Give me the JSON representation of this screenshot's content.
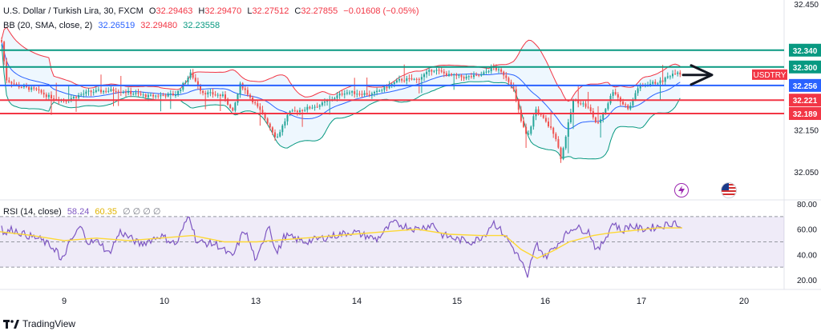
{
  "header": {
    "symbol": "U.S. Dollar / Turkish Lira, 30, FXCM",
    "o_label": "O",
    "o": "32.29463",
    "h_label": "H",
    "h": "32.29470",
    "l_label": "L",
    "l": "32.27512",
    "c_label": "C",
    "c": "32.27855",
    "change": "−0.01608 (−0.05%)"
  },
  "bb": {
    "label": "BB (20, SMA, close, 2)",
    "basis": "32.26519",
    "upper": "32.29480",
    "lower": "32.23558"
  },
  "rsi": {
    "label": "RSI (14, close)",
    "value": "58.24",
    "ma": "60.35",
    "extras": "∅ ∅ ∅ ∅"
  },
  "brand": "TradingView",
  "colors": {
    "candle_up": "#26a69a",
    "candle_down": "#ef5350",
    "bb_upper": "#f23645",
    "bb_lower": "#089981",
    "bb_basis": "#2962ff",
    "bb_fill": "#2196f3",
    "rsi_line": "#7e57c2",
    "rsi_ma": "#fdd835",
    "level_green": "#089981",
    "level_blue": "#2962ff",
    "level_red": "#f23645"
  },
  "chart_data": {
    "type": "candlestick",
    "price_axis": {
      "ticks": [
        "32.450",
        "32.150",
        "32.050"
      ]
    },
    "x_axis": {
      "ticks": [
        "9",
        "10",
        "13",
        "14",
        "15",
        "16",
        "17",
        "20"
      ]
    },
    "levels": [
      {
        "value": "32.340",
        "color": "green"
      },
      {
        "value": "32.300",
        "color": "green"
      },
      {
        "value": "32.256",
        "color": "blue",
        "tag": "USDTRY"
      },
      {
        "value": "32.221",
        "color": "red"
      },
      {
        "value": "32.189",
        "color": "red"
      }
    ],
    "annotation": "arrow pointing right",
    "price_path": [
      [
        0,
        32.27
      ],
      [
        2,
        32.36
      ],
      [
        8,
        32.27
      ],
      [
        22,
        32.255
      ],
      [
        45,
        32.245
      ],
      [
        60,
        32.23
      ],
      [
        80,
        32.22
      ],
      [
        110,
        32.24
      ],
      [
        145,
        32.245
      ],
      [
        185,
        32.23
      ],
      [
        220,
        32.235
      ],
      [
        238,
        32.285
      ],
      [
        252,
        32.24
      ],
      [
        280,
        32.23
      ],
      [
        290,
        32.19
      ],
      [
        300,
        32.26
      ],
      [
        315,
        32.22
      ],
      [
        330,
        32.18
      ],
      [
        345,
        32.13
      ],
      [
        360,
        32.19
      ],
      [
        380,
        32.2
      ],
      [
        400,
        32.21
      ],
      [
        430,
        32.24
      ],
      [
        465,
        32.235
      ],
      [
        480,
        32.25
      ],
      [
        500,
        32.27
      ],
      [
        520,
        32.27
      ],
      [
        540,
        32.295
      ],
      [
        560,
        32.28
      ],
      [
        580,
        32.275
      ],
      [
        600,
        32.28
      ],
      [
        615,
        32.3
      ],
      [
        630,
        32.28
      ],
      [
        640,
        32.25
      ],
      [
        650,
        32.17
      ],
      [
        658,
        32.13
      ],
      [
        668,
        32.2
      ],
      [
        680,
        32.17
      ],
      [
        692,
        32.14
      ],
      [
        700,
        32.08
      ],
      [
        705,
        32.13
      ],
      [
        715,
        32.22
      ],
      [
        725,
        32.215
      ],
      [
        735,
        32.2
      ],
      [
        745,
        32.16
      ],
      [
        755,
        32.2
      ],
      [
        765,
        32.245
      ],
      [
        775,
        32.215
      ],
      [
        785,
        32.2
      ],
      [
        795,
        32.25
      ],
      [
        810,
        32.26
      ],
      [
        825,
        32.265
      ],
      [
        835,
        32.28
      ],
      [
        845,
        32.29
      ],
      [
        851,
        32.2785
      ]
    ],
    "rsi_ylim": [
      15,
      85
    ],
    "rsi_ticks": [
      "80.00",
      "60.00",
      "40.00",
      "20.00"
    ],
    "rsi_bands": [
      70,
      50,
      30
    ],
    "rsi_path": [
      [
        0,
        70
      ],
      [
        5,
        56
      ],
      [
        15,
        60
      ],
      [
        30,
        56
      ],
      [
        50,
        52
      ],
      [
        72,
        43
      ],
      [
        75,
        32
      ],
      [
        85,
        47
      ],
      [
        100,
        62
      ],
      [
        110,
        50
      ],
      [
        125,
        50
      ],
      [
        135,
        40
      ],
      [
        150,
        58
      ],
      [
        175,
        48
      ],
      [
        200,
        55
      ],
      [
        220,
        48
      ],
      [
        236,
        72
      ],
      [
        245,
        50
      ],
      [
        270,
        48
      ],
      [
        290,
        38
      ],
      [
        305,
        60
      ],
      [
        320,
        34
      ],
      [
        335,
        65
      ],
      [
        345,
        40
      ],
      [
        355,
        55
      ],
      [
        380,
        50
      ],
      [
        410,
        54
      ],
      [
        440,
        58
      ],
      [
        470,
        52
      ],
      [
        490,
        65
      ],
      [
        520,
        60
      ],
      [
        540,
        64
      ],
      [
        550,
        56
      ],
      [
        570,
        52
      ],
      [
        590,
        50
      ],
      [
        605,
        56
      ],
      [
        615,
        66
      ],
      [
        630,
        55
      ],
      [
        645,
        40
      ],
      [
        652,
        32
      ],
      [
        658,
        20
      ],
      [
        663,
        37
      ],
      [
        670,
        48
      ],
      [
        680,
        38
      ],
      [
        695,
        48
      ],
      [
        705,
        55
      ],
      [
        715,
        62
      ],
      [
        735,
        58
      ],
      [
        745,
        42
      ],
      [
        755,
        53
      ],
      [
        765,
        66
      ],
      [
        775,
        58
      ],
      [
        785,
        63
      ],
      [
        800,
        60
      ],
      [
        820,
        62
      ],
      [
        835,
        64
      ],
      [
        842,
        66
      ],
      [
        851,
        58
      ]
    ],
    "rsi_ma_path": [
      [
        0,
        58
      ],
      [
        40,
        55
      ],
      [
        80,
        51
      ],
      [
        120,
        53
      ],
      [
        160,
        51
      ],
      [
        200,
        53
      ],
      [
        240,
        55
      ],
      [
        280,
        50
      ],
      [
        320,
        50
      ],
      [
        360,
        52
      ],
      [
        400,
        54
      ],
      [
        440,
        56
      ],
      [
        480,
        58
      ],
      [
        520,
        60
      ],
      [
        560,
        56
      ],
      [
        600,
        55
      ],
      [
        630,
        55
      ],
      [
        650,
        44
      ],
      [
        670,
        37
      ],
      [
        690,
        43
      ],
      [
        710,
        50
      ],
      [
        740,
        55
      ],
      [
        760,
        57
      ],
      [
        790,
        59
      ],
      [
        820,
        61
      ],
      [
        851,
        61
      ]
    ]
  }
}
